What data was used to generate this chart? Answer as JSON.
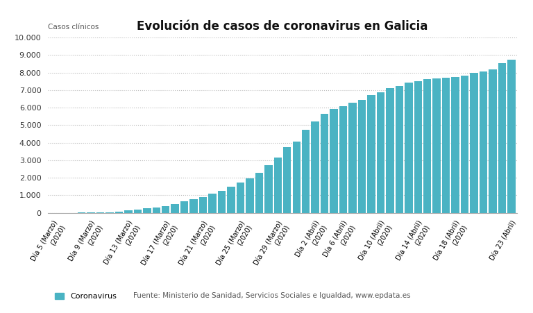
{
  "title": "Evolución de casos de coronavirus en Galicia",
  "ylabel": "Casos clínicos",
  "bar_color": "#4ab3c3",
  "background_color": "#ffffff",
  "ylim": [
    0,
    10000
  ],
  "yticks": [
    0,
    1000,
    2000,
    3000,
    4000,
    5000,
    6000,
    7000,
    8000,
    9000,
    10000
  ],
  "ytick_labels": [
    "0",
    "1.000",
    "2.000",
    "3.000",
    "4.000",
    "5.000",
    "6.000",
    "7.000",
    "8.000",
    "9.000",
    "10.000"
  ],
  "legend_label": "Coronavirus",
  "source_text": "Fuente: Ministerio de Sanidad, Servicios Sociales e Igualdad, www.epdata.es",
  "values": [
    3,
    3,
    5,
    12,
    18,
    25,
    40,
    80,
    130,
    180,
    245,
    310,
    390,
    500,
    650,
    785,
    900,
    1100,
    1270,
    1500,
    1720,
    1950,
    2270,
    2700,
    3150,
    3750,
    4080,
    4750,
    5200,
    5650,
    5920,
    6100,
    6300,
    6450,
    6720,
    6880,
    7100,
    7220,
    7420,
    7530,
    7610,
    7660,
    7700,
    7760,
    7830,
    7980,
    8080,
    8200,
    8530,
    8720
  ],
  "tick_positions": [
    0,
    4,
    8,
    12,
    16,
    20,
    24,
    28,
    31,
    35,
    39,
    43,
    49
  ],
  "tick_labels": [
    "Día 5 (Marzo)\n(2020)",
    "Día 9 (Marzo)\n(2020)",
    "Día 13 (Marzo)\n(2020)",
    "Día 17 (Marzo)\n(2020)",
    "Día 21 (Marzo)\n(2020)",
    "Día 25 (Marzo)\n(2020)",
    "Día 29 (Marzo)\n(2020)",
    "Día 2 (Abril)\n(2020)",
    "Día 6 (Abril)\n(2020)",
    "Día 10 (Abril)\n(2020)",
    "Día 14 (Abril)\n(2020)",
    "Día 18 (Abril)\n(2020)",
    "Día 23 (Abril)"
  ]
}
